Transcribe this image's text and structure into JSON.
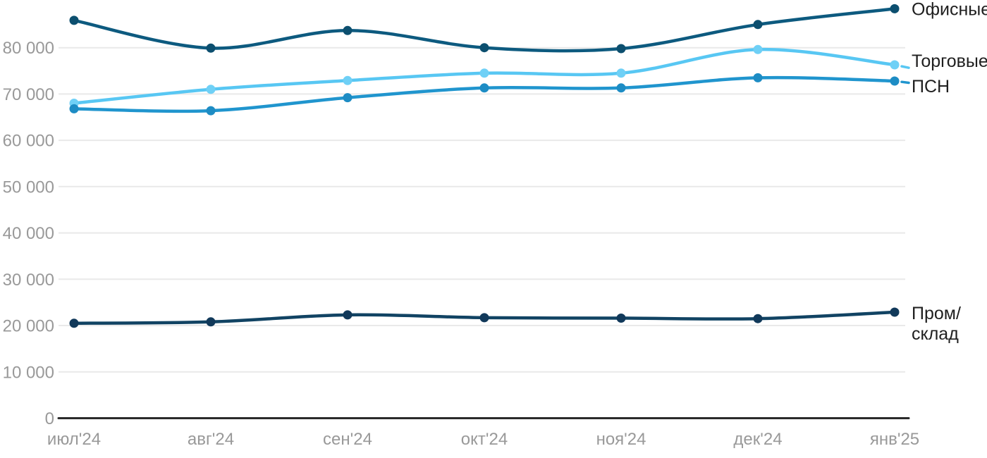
{
  "chart_data": {
    "type": "line",
    "title": "",
    "categories": [
      "июл'24",
      "авг'24",
      "сен'24",
      "окт'24",
      "ноя'24",
      "дек'24",
      "янв'25"
    ],
    "xlabel": "",
    "ylabel": "",
    "ylim": [
      0,
      90000
    ],
    "grid": true,
    "legend_position": "right-edge-labels",
    "y_axis": {
      "tick_values": [
        0,
        10000,
        20000,
        30000,
        40000,
        50000,
        60000,
        70000,
        80000
      ],
      "tick_labels": [
        "0",
        "10 000",
        "20 000",
        "30 000",
        "40 000",
        "50 000",
        "60 000",
        "70 000",
        "80 000"
      ]
    },
    "series": [
      {
        "id": "ofisnye",
        "label": "Офисные",
        "label_lines": [
          "Офисные"
        ],
        "color": "#0d5a7f",
        "dot_color": "#0c4f6f",
        "dashed_tail": false,
        "values": [
          85900,
          79900,
          83700,
          80000,
          79800,
          85000,
          88400
        ]
      },
      {
        "id": "torgovye",
        "label": "Торговые",
        "label_lines": [
          "Торговые"
        ],
        "color": "#58c7f3",
        "dot_color": "#6fd0f6",
        "dashed_tail": true,
        "values": [
          68000,
          71000,
          72900,
          74500,
          74500,
          79600,
          76300
        ]
      },
      {
        "id": "psn",
        "label": "ПСН",
        "label_lines": [
          "ПСН"
        ],
        "color": "#2095ce",
        "dot_color": "#1d8cc4",
        "dashed_tail": true,
        "values": [
          66800,
          66400,
          69200,
          71300,
          71300,
          73500,
          72800
        ]
      },
      {
        "id": "prom-sklad",
        "label": "Пром/склад",
        "label_lines": [
          "Пром/",
          "склад"
        ],
        "color": "#114363",
        "dot_color": "#11395a",
        "dashed_tail": false,
        "values": [
          20500,
          20800,
          22300,
          21700,
          21600,
          21500,
          22900
        ]
      }
    ]
  },
  "colors": {
    "background": "#ffffff",
    "gridline": "#e9e9e9",
    "axis_line": "#2b2b2b",
    "tick_text": "#999999",
    "series_label_text": "#1f1f1f"
  }
}
